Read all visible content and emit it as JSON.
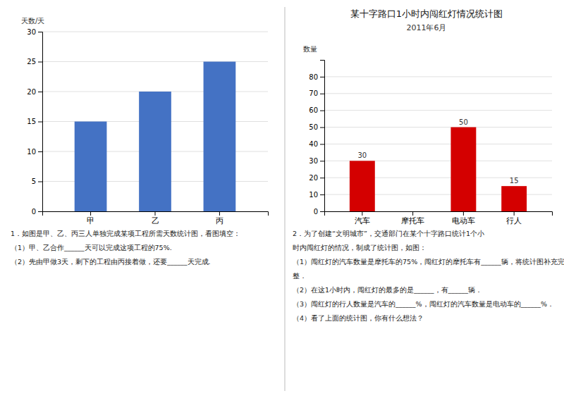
{
  "chart_data": [
    {
      "type": "bar",
      "ylabel": "天数/天",
      "categories": [
        "甲",
        "乙",
        "丙"
      ],
      "values": [
        15,
        20,
        25
      ],
      "color": "#4472c4",
      "ylim": [
        0,
        30
      ],
      "yticks": [
        0,
        5,
        10,
        15,
        20,
        25,
        30
      ],
      "grid": true,
      "annotations": [
        "1．如图是甲、乙、丙三人单独完成某项工程所需天数统计图，看图填空：",
        "（1）甲、乙合作______天可以完成这项工程的75%.",
        "（2）先由甲做3天，剩下的工程由丙接着做，还要______天完成."
      ]
    },
    {
      "type": "bar",
      "title": "某十字路口1小时内闯红灯情况统计图",
      "subtitle": "2011年6月",
      "ylabel": "数量",
      "categories": [
        "汽车",
        "摩托车",
        "电动车",
        "行人"
      ],
      "values": [
        30,
        0,
        50,
        15
      ],
      "color": "#d40000",
      "ylim": [
        0,
        90
      ],
      "yticks": [
        0,
        10,
        20,
        30,
        40,
        50,
        60,
        70,
        80
      ],
      "grid": true,
      "data_labels": true,
      "annotations": [
        "2．为了创建“文明城市”，交通部门在某个十字路口统计1个小",
        "时内闯红灯的情况，制成了统计图，如图：",
        "（1）闯红灯的汽车数量是摩托车的75%，闯红灯的摩托车有______辆，将统计图补充完",
        "整．",
        "（2）在这1小时内，闯红灯的最多的是______，有______辆．",
        "（3）闯红灯的行人数量是汽车的______%，闯红灯的汽车数量是电动车的______%．",
        "（4）看了上面的统计图，你有什么想法？"
      ]
    }
  ]
}
